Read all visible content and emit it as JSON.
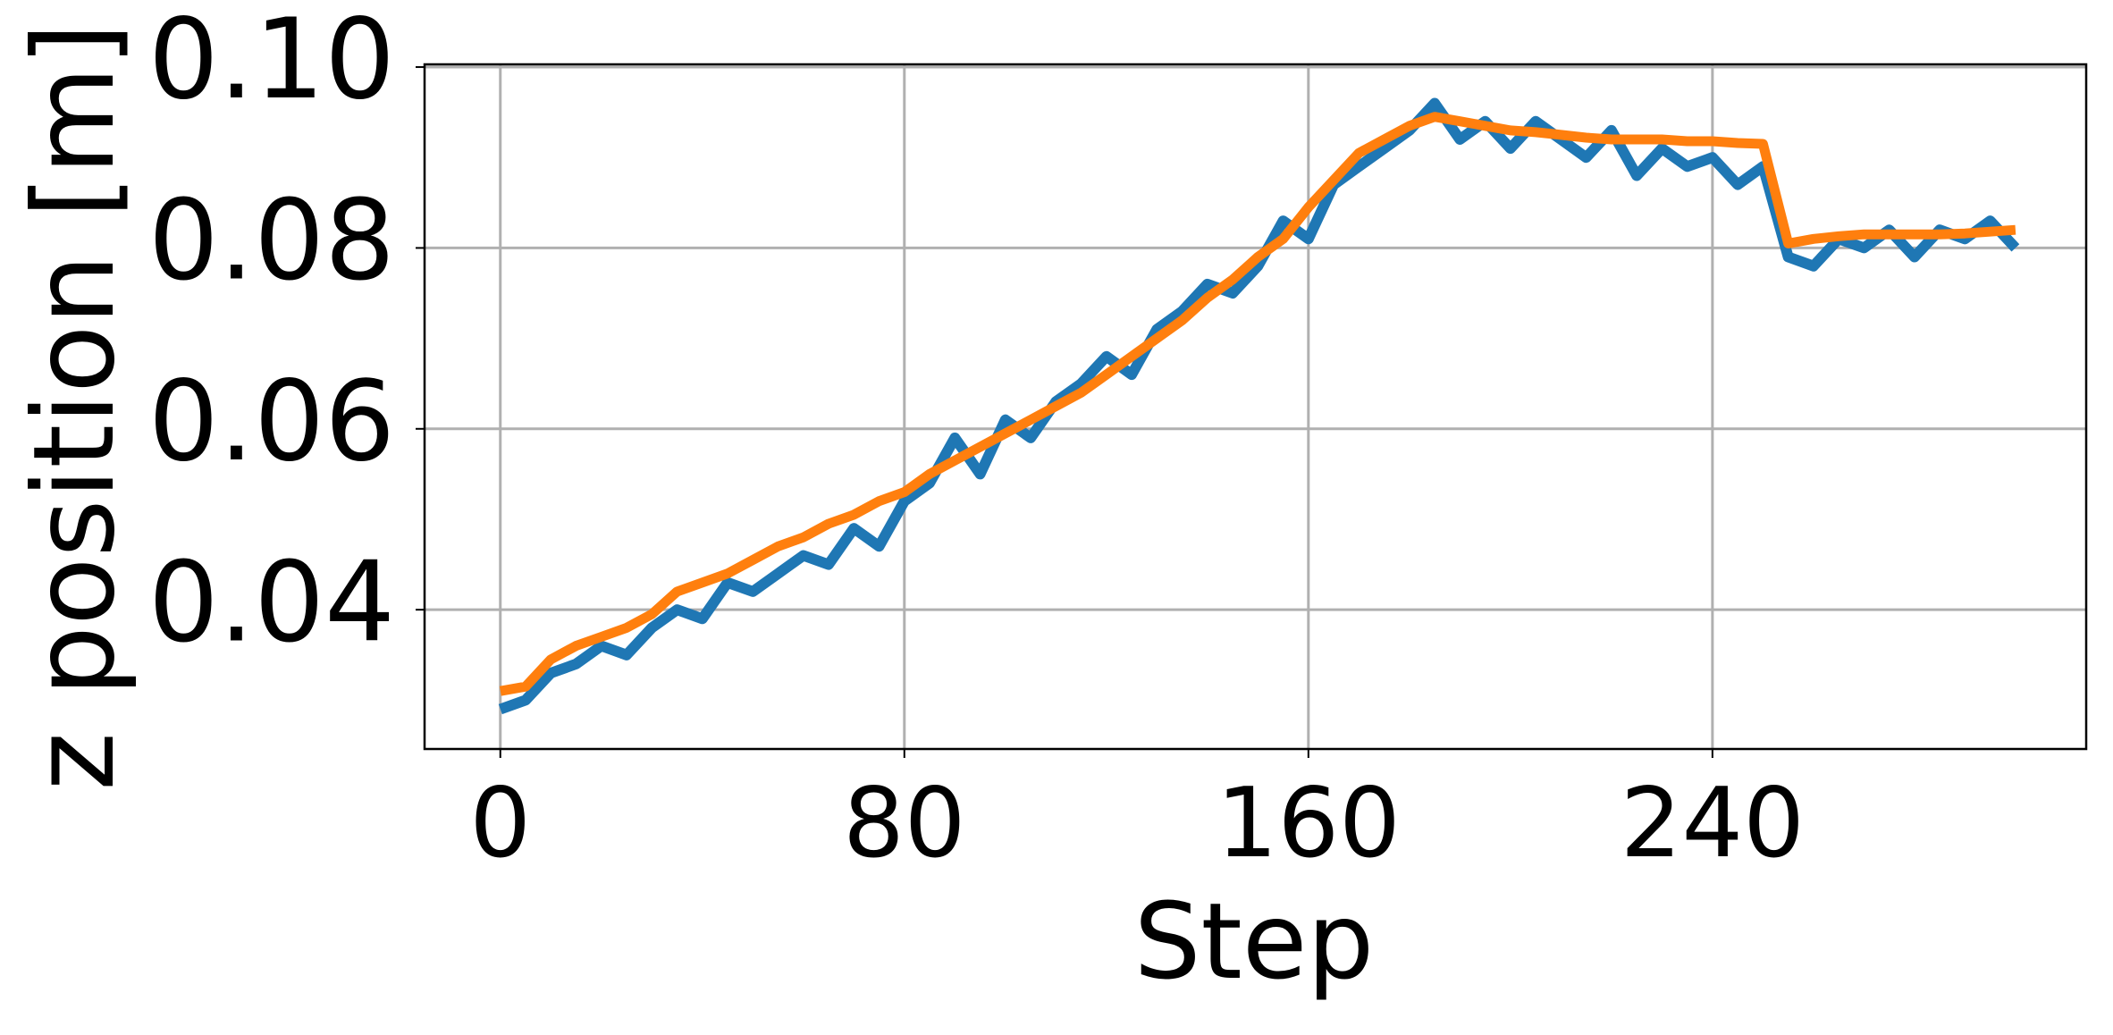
{
  "chart_data": {
    "type": "line",
    "x_label": "Step",
    "y_label": "z position [m]",
    "x": [
      0,
      5,
      10,
      15,
      20,
      25,
      30,
      35,
      40,
      45,
      50,
      55,
      60,
      65,
      70,
      75,
      80,
      85,
      90,
      95,
      100,
      105,
      110,
      115,
      120,
      125,
      130,
      135,
      140,
      145,
      150,
      155,
      160,
      165,
      170,
      175,
      180,
      185,
      190,
      195,
      200,
      205,
      210,
      215,
      220,
      225,
      230,
      235,
      240,
      245,
      250,
      255,
      260,
      265,
      270,
      275,
      280,
      285,
      290,
      295,
      300
    ],
    "series": [
      {
        "color": "#1f77b4",
        "values": [
          0.029,
          0.03,
          0.033,
          0.034,
          0.036,
          0.035,
          0.038,
          0.04,
          0.039,
          0.043,
          0.042,
          0.044,
          0.046,
          0.045,
          0.049,
          0.047,
          0.052,
          0.054,
          0.059,
          0.055,
          0.061,
          0.059,
          0.063,
          0.065,
          0.068,
          0.066,
          0.071,
          0.073,
          0.076,
          0.075,
          0.078,
          0.083,
          0.081,
          0.087,
          0.089,
          0.091,
          0.093,
          0.096,
          0.092,
          0.094,
          0.091,
          0.094,
          0.092,
          0.09,
          0.093,
          0.088,
          0.091,
          0.089,
          0.09,
          0.087,
          0.089,
          0.079,
          0.078,
          0.081,
          0.08,
          0.082,
          0.079,
          0.082,
          0.081,
          0.083,
          0.08
        ]
      },
      {
        "color": "#ff7f0e",
        "values": [
          0.031,
          0.0315,
          0.0345,
          0.036,
          0.037,
          0.038,
          0.0395,
          0.042,
          0.043,
          0.044,
          0.0455,
          0.047,
          0.048,
          0.0495,
          0.0505,
          0.052,
          0.053,
          0.055,
          0.0565,
          0.058,
          0.0595,
          0.061,
          0.0625,
          0.064,
          0.066,
          0.068,
          0.07,
          0.072,
          0.0745,
          0.0765,
          0.079,
          0.081,
          0.0845,
          0.0875,
          0.0905,
          0.092,
          0.0935,
          0.0945,
          0.094,
          0.0935,
          0.093,
          0.0928,
          0.0925,
          0.0922,
          0.092,
          0.092,
          0.092,
          0.0918,
          0.0918,
          0.0916,
          0.0915,
          0.0805,
          0.081,
          0.0813,
          0.0815,
          0.0815,
          0.0815,
          0.0815,
          0.0816,
          0.0818,
          0.082
        ]
      }
    ],
    "xlim": [
      -15,
      314
    ],
    "xticks": [
      0,
      80,
      160,
      240
    ],
    "ylim": [
      0.0246,
      0.1003
    ],
    "yticks": [
      0.04,
      0.06,
      0.08,
      {
        "value": 0.1,
        "label": "0.10"
      }
    ],
    "grid": true
  }
}
